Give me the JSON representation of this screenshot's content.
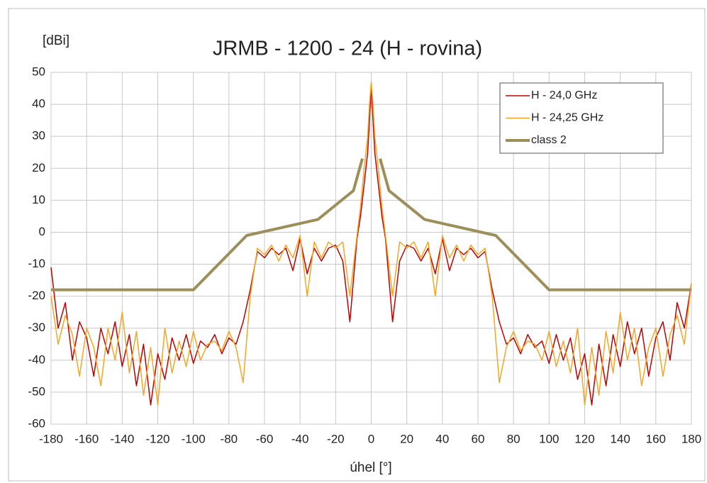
{
  "chart_data": {
    "type": "line",
    "title": "JRMB - 1200 - 24 (H - rovina)",
    "y_label": "[dBi]",
    "x_label": "úhel [°]",
    "xlim": [
      -180,
      180
    ],
    "ylim": [
      -60,
      50
    ],
    "xticks": [
      -180,
      -160,
      -140,
      -120,
      -100,
      -80,
      -60,
      -40,
      -20,
      0,
      20,
      40,
      60,
      80,
      100,
      120,
      140,
      160,
      180
    ],
    "yticks": [
      -60,
      -50,
      -40,
      -30,
      -20,
      -10,
      0,
      10,
      20,
      30,
      40,
      50
    ],
    "grid": true,
    "legend": "upper right",
    "series": [
      {
        "name": "H - 24,0 GHz",
        "color": "#c00000",
        "width": 1.5,
        "x": [
          -180,
          -176,
          -172,
          -168,
          -164,
          -160,
          -156,
          -152,
          -148,
          -144,
          -140,
          -136,
          -132,
          -128,
          -124,
          -120,
          -116,
          -112,
          -108,
          -104,
          -100,
          -96,
          -92,
          -88,
          -84,
          -80,
          -76,
          -72,
          -68,
          -64,
          -60,
          -56,
          -52,
          -48,
          -44,
          -40,
          -36,
          -32,
          -28,
          -24,
          -20,
          -16,
          -12,
          -8,
          -6,
          -4,
          -2,
          -1,
          0,
          1,
          2,
          4,
          6,
          8,
          12,
          16,
          20,
          24,
          28,
          32,
          36,
          40,
          44,
          48,
          52,
          56,
          60,
          64,
          68,
          72,
          76,
          80,
          84,
          88,
          92,
          96,
          100,
          104,
          108,
          112,
          116,
          120,
          124,
          128,
          132,
          136,
          140,
          144,
          148,
          152,
          156,
          160,
          164,
          168,
          172,
          176,
          180
        ],
        "values": [
          -11,
          -30,
          -22,
          -40,
          -28,
          -33,
          -45,
          -30,
          -38,
          -28,
          -42,
          -32,
          -48,
          -35,
          -54,
          -38,
          -46,
          -33,
          -40,
          -32,
          -41,
          -34,
          -36,
          -32,
          -38,
          -33,
          -35,
          -28,
          -18,
          -6,
          -8,
          -5,
          -7,
          -5,
          -12,
          -2,
          -13,
          -5,
          -9,
          -5,
          -4,
          -9,
          -28,
          -2,
          5,
          15,
          25,
          35,
          46,
          35,
          25,
          15,
          5,
          -2,
          -28,
          -9,
          -4,
          -5,
          -9,
          -5,
          -13,
          -2,
          -12,
          -5,
          -7,
          -5,
          -8,
          -6,
          -18,
          -28,
          -35,
          -33,
          -38,
          -32,
          -36,
          -34,
          -41,
          -32,
          -40,
          -33,
          -46,
          -38,
          -54,
          -35,
          -48,
          -32,
          -42,
          -28,
          -38,
          -30,
          -45,
          -33,
          -28,
          -40,
          -22,
          -30,
          -16
        ]
      },
      {
        "name": "H - 24,25 GHz",
        "color": "#f5a623",
        "width": 1.5,
        "x": [
          -180,
          -176,
          -172,
          -168,
          -164,
          -160,
          -156,
          -152,
          -148,
          -144,
          -140,
          -136,
          -132,
          -128,
          -124,
          -120,
          -116,
          -112,
          -108,
          -104,
          -100,
          -96,
          -92,
          -88,
          -84,
          -80,
          -76,
          -72,
          -68,
          -64,
          -60,
          -56,
          -52,
          -48,
          -44,
          -40,
          -36,
          -32,
          -28,
          -24,
          -20,
          -16,
          -12,
          -8,
          -6,
          -4,
          -2,
          -1,
          0,
          1,
          2,
          4,
          6,
          8,
          12,
          16,
          20,
          24,
          28,
          32,
          36,
          40,
          44,
          48,
          52,
          56,
          60,
          64,
          68,
          72,
          76,
          80,
          84,
          88,
          92,
          96,
          100,
          104,
          108,
          112,
          116,
          120,
          124,
          128,
          132,
          136,
          140,
          144,
          148,
          152,
          156,
          160,
          164,
          168,
          172,
          176,
          180
        ],
        "values": [
          -20,
          -35,
          -26,
          -32,
          -45,
          -30,
          -36,
          -48,
          -30,
          -40,
          -25,
          -44,
          -31,
          -51,
          -36,
          -54,
          -30,
          -44,
          -34,
          -42,
          -31,
          -40,
          -35,
          -34,
          -37,
          -31,
          -36,
          -47,
          -20,
          -5,
          -7,
          -4,
          -9,
          -4,
          -8,
          -1,
          -20,
          -3,
          -8,
          -3,
          -5,
          -3,
          -20,
          -1,
          8,
          20,
          30,
          40,
          47,
          40,
          30,
          20,
          8,
          -1,
          -20,
          -3,
          -5,
          -3,
          -8,
          -3,
          -20,
          -1,
          -8,
          -4,
          -9,
          -4,
          -7,
          -5,
          -20,
          -47,
          -36,
          -31,
          -37,
          -34,
          -35,
          -40,
          -31,
          -42,
          -34,
          -44,
          -30,
          -54,
          -36,
          -51,
          -31,
          -44,
          -25,
          -40,
          -30,
          -48,
          -36,
          -30,
          -45,
          -32,
          -26,
          -35,
          -16
        ]
      },
      {
        "name": "class 2",
        "color": "#9c8f5a",
        "width": 4,
        "x": [
          -180,
          -100,
          -70,
          -30,
          -10,
          -5,
          0,
          5,
          10,
          30,
          70,
          100,
          180
        ],
        "values": [
          -18,
          -18,
          -1,
          4,
          13,
          23,
          null,
          23,
          13,
          4,
          -1,
          -18,
          -18
        ]
      }
    ]
  }
}
